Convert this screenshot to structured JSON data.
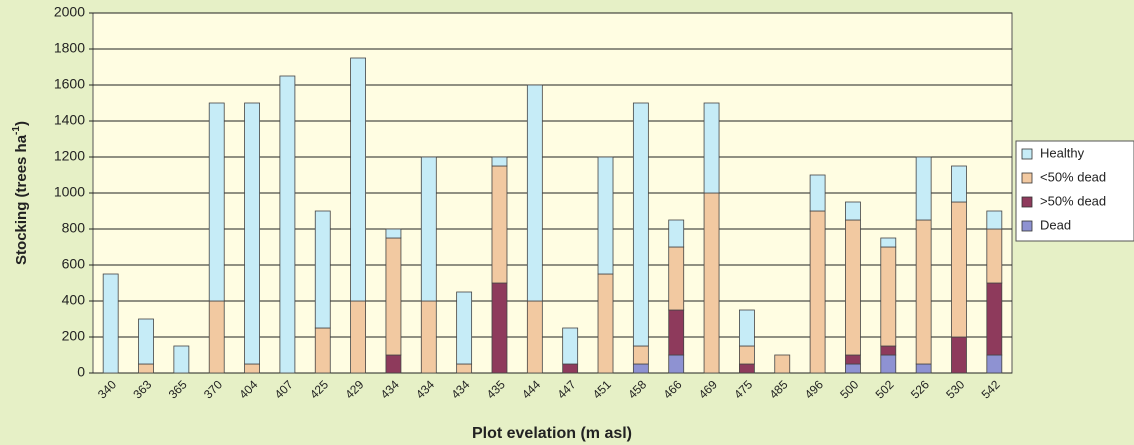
{
  "chart_data": {
    "type": "stacked_bar",
    "x_label": "Plot evelation (m asl)",
    "y_label": {
      "text": "Stocking (trees ha",
      "superscript": "-1",
      "suffix": ")"
    },
    "categories": [
      "340",
      "363",
      "365",
      "370",
      "404",
      "407",
      "425",
      "429",
      "434",
      "434",
      "434",
      "435",
      "444",
      "447",
      "451",
      "458",
      "466",
      "469",
      "475",
      "485",
      "496",
      "500",
      "502",
      "526",
      "530",
      "542"
    ],
    "series": [
      {
        "name": "Healthy",
        "color": "#c6ecf7",
        "values": [
          550,
          250,
          150,
          1100,
          1450,
          1650,
          650,
          1350,
          50,
          800,
          400,
          50,
          1200,
          200,
          650,
          1350,
          150,
          500,
          200,
          0,
          200,
          100,
          50,
          350,
          200,
          100
        ]
      },
      {
        "name": "<50% dead",
        "color": "#f2c9a1",
        "values": [
          0,
          50,
          0,
          400,
          50,
          0,
          250,
          400,
          650,
          400,
          50,
          650,
          400,
          0,
          550,
          100,
          350,
          1000,
          100,
          100,
          900,
          750,
          550,
          800,
          750,
          300
        ]
      },
      {
        "name": ">50% dead",
        "color": "#8e3a5c",
        "values": [
          0,
          0,
          0,
          0,
          0,
          0,
          0,
          0,
          100,
          0,
          0,
          500,
          0,
          50,
          0,
          0,
          250,
          0,
          50,
          0,
          0,
          50,
          50,
          0,
          200,
          400
        ]
      },
      {
        "name": "Dead",
        "color": "#8e92d2",
        "values": [
          0,
          0,
          0,
          0,
          0,
          0,
          0,
          0,
          0,
          0,
          0,
          0,
          0,
          0,
          0,
          50,
          100,
          0,
          0,
          0,
          0,
          50,
          100,
          50,
          0,
          100
        ]
      }
    ],
    "ylim": [
      0,
      2000
    ],
    "yticks": [
      0,
      200,
      400,
      600,
      800,
      1000,
      1200,
      1400,
      1600,
      1800,
      2000
    ],
    "grid": true
  }
}
